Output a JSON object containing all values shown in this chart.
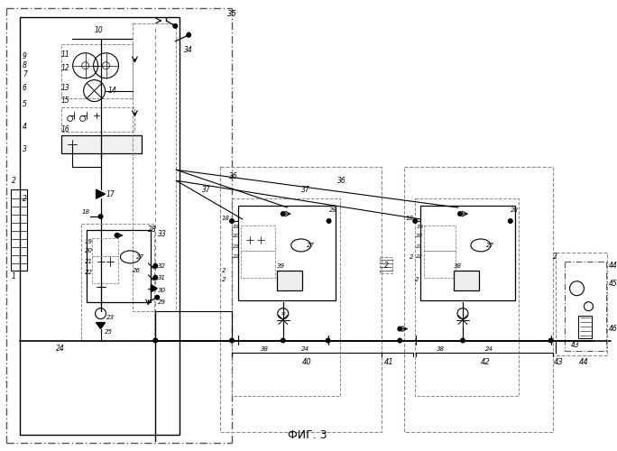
{
  "title": "ФИГ. 3",
  "bg_color": "#ffffff",
  "lc": "#000000",
  "fig_width": 6.84,
  "fig_height": 5.0,
  "dpi": 100
}
